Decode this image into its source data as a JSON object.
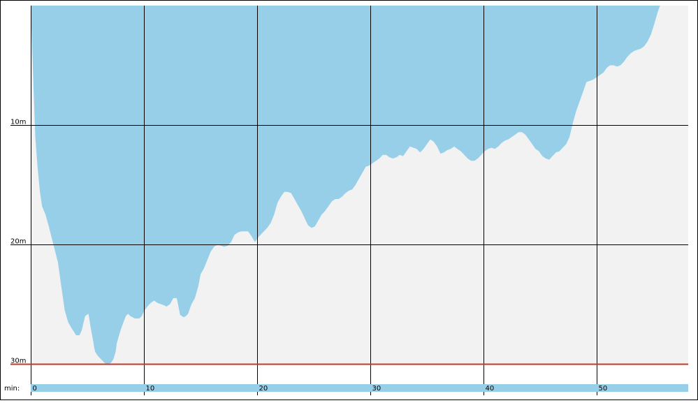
{
  "chart_data": {
    "type": "area",
    "title": "",
    "xlabel": "min:",
    "ylabel": "",
    "xlim": [
      0,
      58
    ],
    "ylim": [
      0,
      30
    ],
    "y_inverted": true,
    "grid": true,
    "x_ticks": [
      {
        "value": 0,
        "label": "0"
      },
      {
        "value": 10,
        "label": "10"
      },
      {
        "value": 20,
        "label": "20"
      },
      {
        "value": 30,
        "label": "30"
      },
      {
        "value": 40,
        "label": "40"
      },
      {
        "value": 50,
        "label": "50"
      }
    ],
    "y_ticks": [
      {
        "value": 10,
        "label": "10m"
      },
      {
        "value": 20,
        "label": "20m"
      },
      {
        "value": 30,
        "label": "30m"
      }
    ],
    "max_depth_line": 30,
    "colors": {
      "area": "#97cfe8",
      "background": "#f2f2f2",
      "grid": "#000000",
      "max_line": "#c0392b",
      "timeline": "#97cfe8"
    },
    "series": [
      {
        "x": [
          0.0,
          0.2,
          0.4,
          0.6,
          0.8,
          1.0,
          1.3,
          1.6,
          2.0,
          2.4,
          2.7,
          3.0,
          3.3,
          3.6,
          3.8,
          4.0,
          4.3,
          4.5,
          4.8,
          5.1,
          5.3,
          5.5,
          5.6,
          5.7,
          5.9,
          6.1,
          6.3,
          6.5,
          6.7,
          6.9,
          7.1,
          7.3,
          7.5,
          7.6,
          7.8,
          8.0,
          8.2,
          8.4,
          8.6,
          8.8,
          9.0,
          9.2,
          9.4,
          9.6,
          9.8,
          10.0,
          10.3,
          10.6,
          10.9,
          11.2,
          11.5,
          11.8,
          12.0,
          12.3,
          12.6,
          12.9,
          13.2,
          13.5,
          13.7,
          13.9,
          14.2,
          14.5,
          14.8,
          15.0,
          15.3,
          15.6,
          15.9,
          16.2,
          16.5,
          16.8,
          17.1,
          17.4,
          17.7,
          18.0,
          18.3,
          18.6,
          18.9,
          19.2,
          19.5,
          19.8,
          20.1,
          20.5,
          20.9,
          21.2,
          21.5,
          21.8,
          22.1,
          22.4,
          22.7,
          23.0,
          23.3,
          23.6,
          23.9,
          24.2,
          24.5,
          24.8,
          25.1,
          25.4,
          25.7,
          26.0,
          26.3,
          26.6,
          26.9,
          27.2,
          27.5,
          27.8,
          28.1,
          28.4,
          28.7,
          29.0,
          29.3,
          29.6,
          29.9,
          30.2,
          30.5,
          30.8,
          31.1,
          31.4,
          31.7,
          32.0,
          32.3,
          32.6,
          32.9,
          33.2,
          33.5,
          33.8,
          34.1,
          34.4,
          34.7,
          35.0,
          35.3,
          35.6,
          35.9,
          36.2,
          36.5,
          36.8,
          37.1,
          37.4,
          37.7,
          38.0,
          38.3,
          38.6,
          38.9,
          39.2,
          39.5,
          39.8,
          40.1,
          40.4,
          40.7,
          41.0,
          41.3,
          41.6,
          41.9,
          42.2,
          42.5,
          42.8,
          43.1,
          43.4,
          43.7,
          44.0,
          44.3,
          44.6,
          44.9,
          45.2,
          45.5,
          45.8,
          46.1,
          46.4,
          46.7,
          47.0,
          47.3,
          47.6,
          47.9,
          48.2,
          48.5,
          48.8,
          49.1,
          49.4,
          49.7,
          50.0,
          50.3,
          50.6,
          50.9,
          51.2,
          51.5,
          51.8,
          52.1,
          52.4,
          52.7,
          53.0,
          53.3,
          53.6,
          53.9,
          54.2,
          54.5,
          54.8,
          55.1,
          55.4,
          55.6
        ],
        "y": [
          0.0,
          5.5,
          11.0,
          13.5,
          15.5,
          16.8,
          17.5,
          18.5,
          20.0,
          21.5,
          23.5,
          25.5,
          26.5,
          27.0,
          27.3,
          27.6,
          27.6,
          27.2,
          26.0,
          25.8,
          27.0,
          28.0,
          28.6,
          29.0,
          29.3,
          29.5,
          29.7,
          29.9,
          30.0,
          30.0,
          29.9,
          29.6,
          29.0,
          28.3,
          27.6,
          27.0,
          26.5,
          26.0,
          25.8,
          26.0,
          26.1,
          26.2,
          26.2,
          26.2,
          26.0,
          25.6,
          25.2,
          24.9,
          24.7,
          24.9,
          25.0,
          25.1,
          25.2,
          25.0,
          24.5,
          24.5,
          25.9,
          26.1,
          26.0,
          25.8,
          25.0,
          24.5,
          23.5,
          22.5,
          22.0,
          21.3,
          20.6,
          20.2,
          20.0,
          20.1,
          20.2,
          20.1,
          19.8,
          19.2,
          19.0,
          18.9,
          18.9,
          18.9,
          19.3,
          19.8,
          19.4,
          19.0,
          18.6,
          18.2,
          17.5,
          16.5,
          16.0,
          15.6,
          15.6,
          15.7,
          16.2,
          16.7,
          17.2,
          17.8,
          18.4,
          18.6,
          18.5,
          18.0,
          17.5,
          17.2,
          16.8,
          16.4,
          16.2,
          16.2,
          16.0,
          15.7,
          15.5,
          15.4,
          15.0,
          14.5,
          14.0,
          13.5,
          13.4,
          13.2,
          13.0,
          12.8,
          12.5,
          12.5,
          12.7,
          12.8,
          12.7,
          12.5,
          12.6,
          12.2,
          11.8,
          11.9,
          12.0,
          12.3,
          12.0,
          11.6,
          11.2,
          11.4,
          11.8,
          12.4,
          12.3,
          12.1,
          12.0,
          11.8,
          12.0,
          12.2,
          12.5,
          12.8,
          13.0,
          13.0,
          12.8,
          12.5,
          12.2,
          12.0,
          11.9,
          12.0,
          11.8,
          11.5,
          11.3,
          11.2,
          11.0,
          10.8,
          10.6,
          10.6,
          10.8,
          11.2,
          11.6,
          12.0,
          12.2,
          12.6,
          12.8,
          12.9,
          12.6,
          12.3,
          12.2,
          11.9,
          11.6,
          11.0,
          9.8,
          8.8,
          8.0,
          7.2,
          6.4,
          6.3,
          6.2,
          6.0,
          5.8,
          5.6,
          5.2,
          5.0,
          5.0,
          5.1,
          5.0,
          4.7,
          4.3,
          4.0,
          3.8,
          3.7,
          3.6,
          3.4,
          3.0,
          2.4,
          1.5,
          0.5,
          0.0
        ]
      }
    ]
  }
}
